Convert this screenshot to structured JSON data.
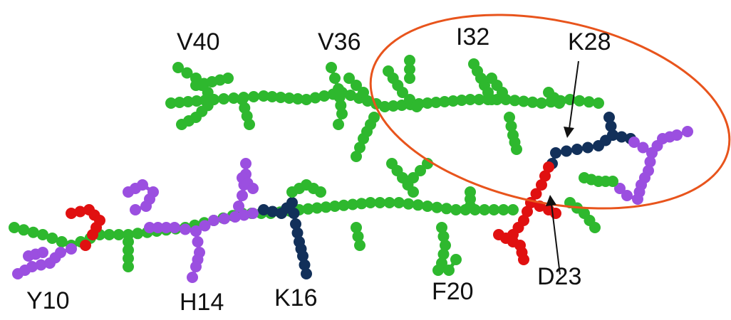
{
  "labels": {
    "V40": "V40",
    "V36": "V36",
    "I32": "I32",
    "K28": "K28",
    "Y10": "Y10",
    "H14": "H14",
    "K16": "K16",
    "F20": "F20",
    "D23": "D23"
  },
  "colors": {
    "hydrophobic": "#2eb82e",
    "aromatic": "#9b4fe0",
    "acidic": "#e01010",
    "basic": "#12305a",
    "highlight": "#e8541c",
    "arrow": "#111111",
    "text": "#111111"
  }
}
